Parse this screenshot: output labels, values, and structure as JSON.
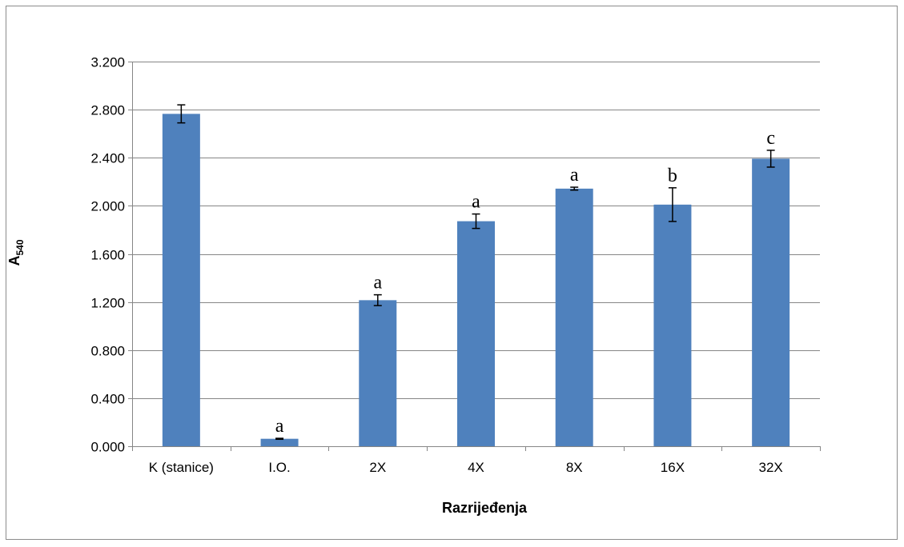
{
  "chart_data": {
    "type": "bar",
    "categories": [
      "K (stanice)",
      "I.O.",
      "2X",
      "4X",
      "8X",
      "16X",
      "32X"
    ],
    "values": [
      2.765,
      0.062,
      1.215,
      1.872,
      2.143,
      2.01,
      2.392
    ],
    "errors": [
      0.075,
      0.004,
      0.045,
      0.06,
      0.012,
      0.14,
      0.07
    ],
    "annotations": [
      "",
      "a",
      "a",
      "a",
      "a",
      "b",
      "c"
    ],
    "ylim": [
      0,
      3.2
    ],
    "yticks": [
      "0.000",
      "0.400",
      "0.800",
      "1.200",
      "1.600",
      "2.000",
      "2.400",
      "2.800",
      "3.200"
    ],
    "ylabel_main": "A",
    "ylabel_sub": "540",
    "xlabel": "Razrijeđenja",
    "bar_color": "#4f81bd",
    "grid": true,
    "legend": "none"
  }
}
